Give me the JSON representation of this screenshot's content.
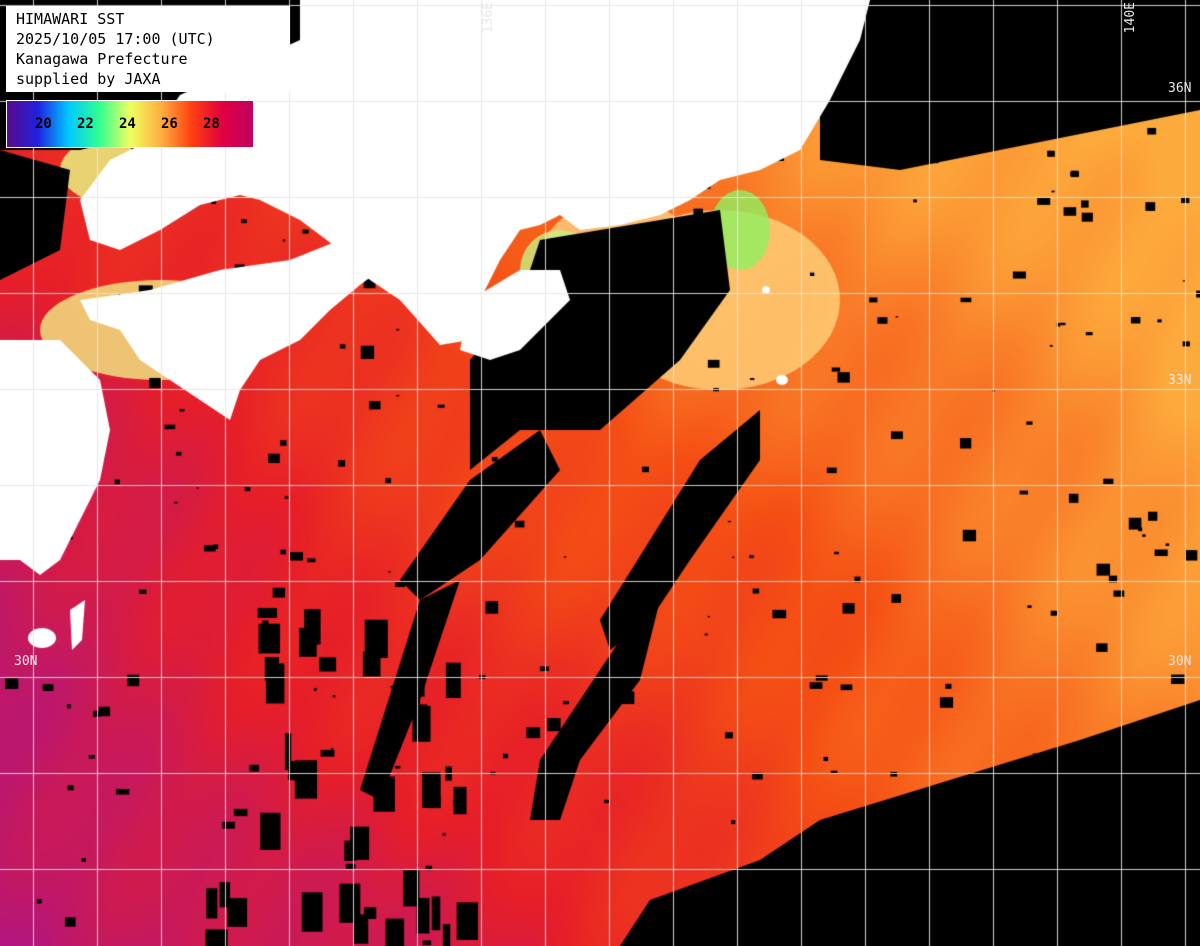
{
  "info": {
    "line1": "HIMAWARI SST",
    "line2": "2025/10/05 17:00 (UTC)",
    "line3": "Kanagawa Prefecture",
    "line4": "supplied by JAXA"
  },
  "legend": {
    "ticks": [
      "20",
      "22",
      "24",
      "26",
      "28"
    ],
    "min": 18,
    "max": 30,
    "colors": [
      "#5a0a8c",
      "#2020e0",
      "#00c8ff",
      "#30ff90",
      "#f0ff60",
      "#ffb040",
      "#ff4010",
      "#e00040",
      "#c00060"
    ]
  },
  "grid_labels": {
    "lon_136": "136E",
    "lon_140": "140E",
    "lat_33_right": "33N",
    "lat_30_left": "30N",
    "lat_30_right": "30N",
    "lat_36_right": "36N"
  },
  "colors": {
    "land": "#ffffff",
    "cloud": "#000000",
    "grid": "#e6e6e6"
  }
}
